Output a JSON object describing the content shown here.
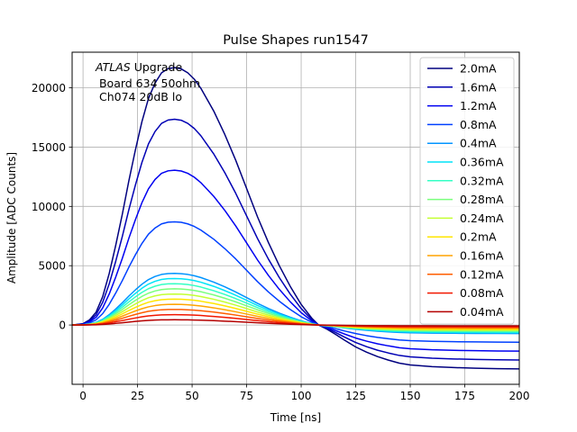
{
  "chart_data": {
    "type": "line",
    "title": "Pulse Shapes run1547",
    "xlabel": "Time [ns]",
    "ylabel": "Amplitude [ADC Counts]",
    "xlim": [
      -5,
      200
    ],
    "ylim": [
      -5000,
      23000
    ],
    "grid": true,
    "x_ticks": [
      0,
      25,
      50,
      75,
      100,
      125,
      150,
      175,
      200
    ],
    "y_ticks": [
      0,
      5000,
      10000,
      15000,
      20000
    ],
    "x_tick_labels": [
      "0",
      "25",
      "50",
      "75",
      "100",
      "125",
      "150",
      "175",
      "200"
    ],
    "y_tick_labels": [
      "0",
      "5000",
      "10000",
      "15000",
      "20000"
    ],
    "annotation": {
      "italic": "ATLAS",
      "line1_rest": " Upgrade",
      "line2": " Board 634 50ohm",
      "line3": " Ch074 20dB lo"
    },
    "legend_position": "top-right",
    "series": [
      {
        "name": "2.0mA",
        "peak": 21700,
        "undershoot": -3700,
        "color": "#00007f"
      },
      {
        "name": "1.6mA",
        "peak": 17350,
        "undershoot": -2950,
        "color": "#0000b4"
      },
      {
        "name": "1.2mA",
        "peak": 13050,
        "undershoot": -2200,
        "color": "#0000f1"
      },
      {
        "name": "0.8mA",
        "peak": 8700,
        "undershoot": -1450,
        "color": "#0040ff"
      },
      {
        "name": "0.4mA",
        "peak": 4350,
        "undershoot": -720,
        "color": "#0094ff"
      },
      {
        "name": "0.36mA",
        "peak": 3920,
        "undershoot": -650,
        "color": "#00e4f8"
      },
      {
        "name": "0.32mA",
        "peak": 3480,
        "undershoot": -580,
        "color": "#33ffc4"
      },
      {
        "name": "0.28mA",
        "peak": 3050,
        "undershoot": -510,
        "color": "#7aff7d"
      },
      {
        "name": "0.24mA",
        "peak": 2610,
        "undershoot": -440,
        "color": "#c4ff33"
      },
      {
        "name": "0.2mA",
        "peak": 2180,
        "undershoot": -370,
        "color": "#ffe600"
      },
      {
        "name": "0.16mA",
        "peak": 1740,
        "undershoot": -290,
        "color": "#ffa400"
      },
      {
        "name": "0.12mA",
        "peak": 1310,
        "undershoot": -220,
        "color": "#ff5d00"
      },
      {
        "name": "0.08mA",
        "peak": 870,
        "undershoot": -150,
        "color": "#f11700"
      },
      {
        "name": "0.04mA",
        "peak": 440,
        "undershoot": -75,
        "color": "#b40000"
      }
    ],
    "pulse_shape": {
      "t": [
        -5,
        0,
        3,
        6,
        9,
        12,
        15,
        18,
        21,
        24,
        27,
        30,
        33,
        36,
        39,
        42,
        45,
        48,
        51,
        54,
        57,
        60,
        65,
        70,
        75,
        80,
        85,
        90,
        95,
        100,
        105,
        108,
        112,
        116,
        120,
        125,
        130,
        135,
        140,
        145,
        150,
        160,
        170,
        180,
        190,
        200
      ],
      "normalized": [
        0.0,
        0.005,
        0.02,
        0.05,
        0.11,
        0.2,
        0.31,
        0.43,
        0.56,
        0.68,
        0.79,
        0.88,
        0.94,
        0.98,
        0.996,
        1.0,
        0.995,
        0.98,
        0.955,
        0.92,
        0.875,
        0.83,
        0.74,
        0.64,
        0.53,
        0.42,
        0.32,
        0.23,
        0.15,
        0.08,
        0.025,
        0.0,
        -0.1,
        -0.22,
        -0.35,
        -0.5,
        -0.62,
        -0.72,
        -0.8,
        -0.87,
        -0.91,
        -0.95,
        -0.97,
        -0.985,
        -0.995,
        -1.0
      ]
    }
  }
}
